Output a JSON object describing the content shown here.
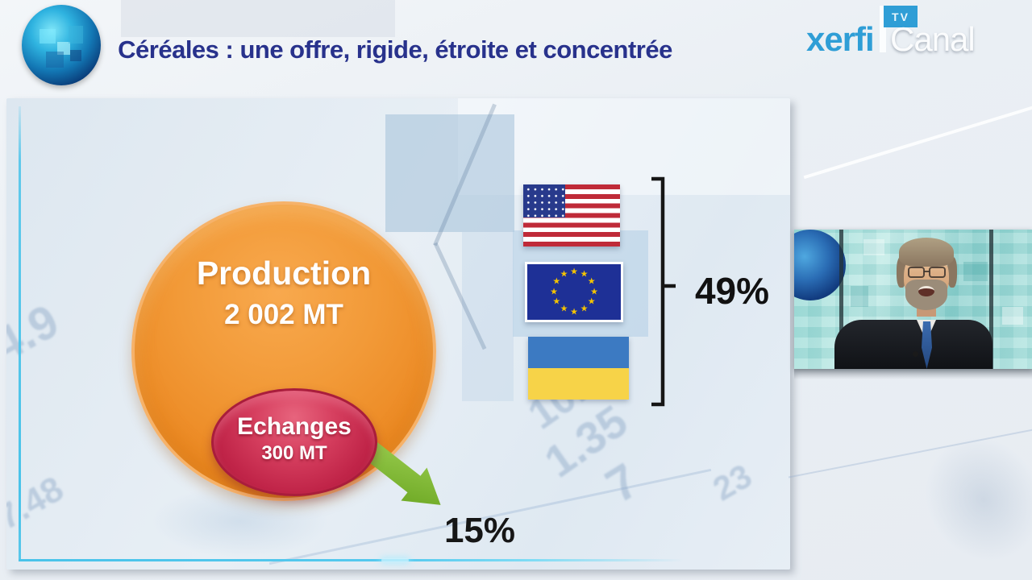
{
  "header": {
    "title": "Céréales : une offre, rigide, étroite et concentrée",
    "brand": {
      "xerfi": "xerfi",
      "tv": "TV",
      "canal": "Canal"
    }
  },
  "diagram": {
    "production": {
      "label": "Production",
      "value": "2 002 MT"
    },
    "echanges": {
      "label": "Echanges",
      "value": "300 MT"
    },
    "share_49": "49%",
    "share_15": "15%"
  },
  "chart_data": {
    "type": "diagram",
    "title": "Céréales : une offre, rigide, étroite et concentrée",
    "elements": [
      {
        "kind": "circle",
        "label": "Production",
        "value": "2 002 MT"
      },
      {
        "kind": "ellipse",
        "label": "Echanges",
        "value": "300 MT",
        "nested_in": "Production"
      },
      {
        "kind": "flag-group",
        "flags": [
          "United States",
          "European Union",
          "Ukraine"
        ],
        "bracket_share": "49%"
      },
      {
        "kind": "arrow",
        "from": "Echanges",
        "points_to_share": "15%"
      }
    ]
  },
  "texture": {
    "n1": "4.9",
    "n2": "7.48",
    "n3": "10.",
    "n4": "1.35",
    "n5": "7",
    "n6": "23"
  },
  "icons": {
    "eu_star": "★"
  },
  "flags_meta": {
    "eu_star_count": 12
  },
  "colors": {
    "title_blue": "#28328c",
    "xerfi_blue": "#2f9ed6",
    "circle_orange": "#ee8f2b",
    "ellipse_red": "#c02448",
    "arrow_green": "#7ab32e",
    "cyan_border": "#49c3ea"
  }
}
